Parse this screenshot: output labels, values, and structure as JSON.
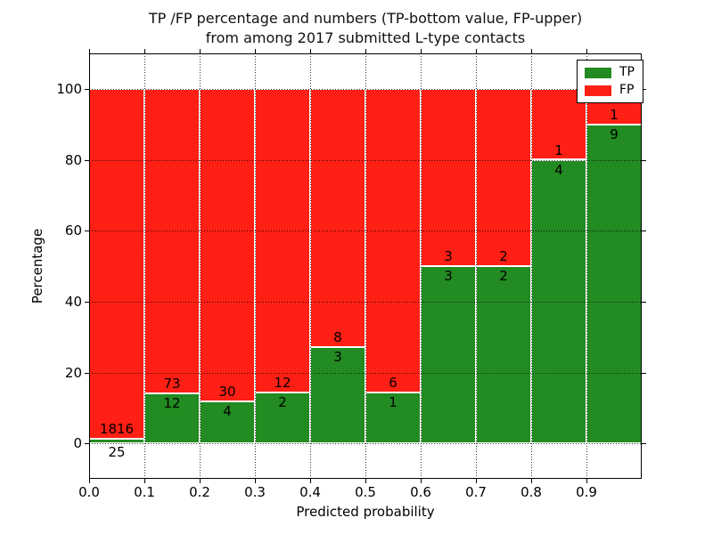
{
  "figure": {
    "title_line1": "TP /FP percentage and numbers (TP-bottom value, FP-upper)",
    "title_line2": "from among 2017 submitted L-type contacts"
  },
  "chart_data": {
    "type": "bar",
    "stacked": true,
    "normalized_to_percent": true,
    "title": "TP /FP percentage and numbers (TP-bottom value, FP-upper) from among 2017 submitted L-type contacts",
    "xlabel": "Predicted probability",
    "ylabel": "Percentage",
    "xlim": [
      0.0,
      1.0
    ],
    "ylim": [
      -10,
      110
    ],
    "x_ticks": [
      0.0,
      0.1,
      0.2,
      0.3,
      0.4,
      0.5,
      0.6,
      0.7,
      0.8,
      0.9
    ],
    "x_tick_labels": [
      "0.0",
      "0.1",
      "0.2",
      "0.3",
      "0.4",
      "0.5",
      "0.6",
      "0.7",
      "0.8",
      "0.9"
    ],
    "y_ticks": [
      0,
      20,
      40,
      60,
      80,
      100
    ],
    "y_tick_labels": [
      "0",
      "20",
      "40",
      "60",
      "80",
      "100"
    ],
    "grid": "dotted",
    "legend": {
      "position": "upper right",
      "entries": [
        {
          "label": "TP",
          "color": "#228B22"
        },
        {
          "label": "FP",
          "color": "#FF1F14"
        }
      ]
    },
    "colors": {
      "tp": "#228B22",
      "fp": "#FF1F14",
      "background": "#ffffff",
      "grid": "#000000"
    },
    "bins": [
      {
        "x_range": [
          0.0,
          0.1
        ],
        "tp_count": 25,
        "fp_count": 1816,
        "tp_pct": 1.36,
        "fp_pct": 98.64
      },
      {
        "x_range": [
          0.1,
          0.2
        ],
        "tp_count": 12,
        "fp_count": 73,
        "tp_pct": 14.12,
        "fp_pct": 85.88
      },
      {
        "x_range": [
          0.2,
          0.3
        ],
        "tp_count": 4,
        "fp_count": 30,
        "tp_pct": 11.76,
        "fp_pct": 88.24
      },
      {
        "x_range": [
          0.3,
          0.4
        ],
        "tp_count": 2,
        "fp_count": 12,
        "tp_pct": 14.29,
        "fp_pct": 85.71
      },
      {
        "x_range": [
          0.4,
          0.5
        ],
        "tp_count": 3,
        "fp_count": 8,
        "tp_pct": 27.27,
        "fp_pct": 72.73
      },
      {
        "x_range": [
          0.5,
          0.6
        ],
        "tp_count": 1,
        "fp_count": 6,
        "tp_pct": 14.29,
        "fp_pct": 85.71
      },
      {
        "x_range": [
          0.6,
          0.7
        ],
        "tp_count": 3,
        "fp_count": 3,
        "tp_pct": 50.0,
        "fp_pct": 50.0
      },
      {
        "x_range": [
          0.7,
          0.8
        ],
        "tp_count": 2,
        "fp_count": 2,
        "tp_pct": 50.0,
        "fp_pct": 50.0
      },
      {
        "x_range": [
          0.8,
          0.9
        ],
        "tp_count": 4,
        "fp_count": 1,
        "tp_pct": 80.0,
        "fp_pct": 20.0
      },
      {
        "x_range": [
          0.9,
          1.0
        ],
        "tp_count": 9,
        "fp_count": 1,
        "tp_pct": 90.0,
        "fp_pct": 10.0
      }
    ]
  }
}
